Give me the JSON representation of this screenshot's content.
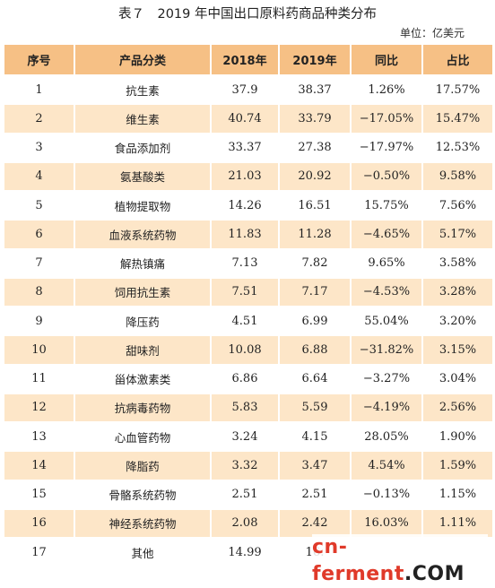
{
  "title": "表７　2019 年中国出口原料药商品种类分布",
  "unit": "单位：亿美元",
  "headers": [
    "序号",
    "产品分类",
    "2018年",
    "2019年",
    "同比",
    "占比"
  ],
  "rows": [
    [
      "1",
      "抗生素",
      "37.9",
      "38.37",
      "1.26%",
      "17.57%"
    ],
    [
      "2",
      "维生素",
      "40.74",
      "33.79",
      "−17.05%",
      "15.47%"
    ],
    [
      "3",
      "食品添加剂",
      "33.37",
      "27.38",
      "−17.97%",
      "12.53%"
    ],
    [
      "4",
      "氨基酸类",
      "21.03",
      "20.92",
      "−0.50%",
      "9.58%"
    ],
    [
      "5",
      "植物提取物",
      "14.26",
      "16.51",
      "15.75%",
      "7.56%"
    ],
    [
      "6",
      "血液系统药物",
      "11.83",
      "11.28",
      "−4.65%",
      "5.17%"
    ],
    [
      "7",
      "解热镇痛",
      "7.13",
      "7.82",
      "9.65%",
      "3.58%"
    ],
    [
      "8",
      "饲用抗生素",
      "7.51",
      "7.17",
      "−4.53%",
      "3.28%"
    ],
    [
      "9",
      "降压药",
      "4.51",
      "6.99",
      "55.04%",
      "3.20%"
    ],
    [
      "10",
      "甜味剂",
      "10.08",
      "6.88",
      "−31.82%",
      "3.15%"
    ],
    [
      "11",
      "甾体激素类",
      "6.86",
      "6.64",
      "−3.27%",
      "3.04%"
    ],
    [
      "12",
      "抗病毒药物",
      "5.83",
      "5.59",
      "−4.19%",
      "2.56%"
    ],
    [
      "13",
      "心血管药物",
      "3.24",
      "4.15",
      "28.05%",
      "1.90%"
    ],
    [
      "14",
      "降脂药",
      "3.32",
      "3.47",
      "4.54%",
      "1.59%"
    ],
    [
      "15",
      "骨骼系统药物",
      "2.51",
      "2.51",
      "−0.13%",
      "1.15%"
    ],
    [
      "16",
      "神经系统药物",
      "2.08",
      "2.42",
      "16.03%",
      "1.11%"
    ],
    [
      "17",
      "其他",
      "14.99",
      "16.",
      "",
      ""
    ]
  ],
  "watermark": {
    "brand": "cn-ferment",
    "suffix": ".COM"
  },
  "colors": {
    "header_bg": "#f6c085",
    "stripe_bg": "#fde6c8",
    "watermark": "#e03a2a"
  }
}
